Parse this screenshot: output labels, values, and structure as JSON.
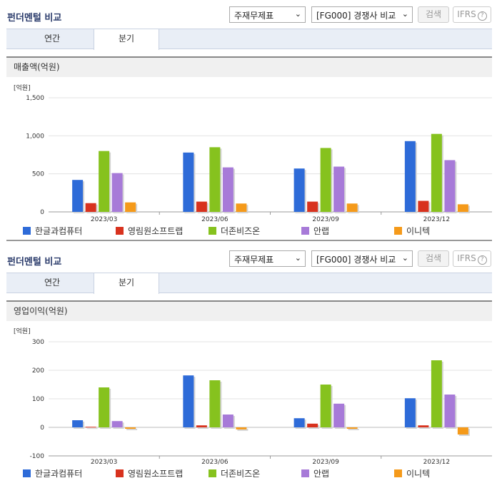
{
  "panels": [
    {
      "title": "펀더멘털 비교",
      "select1": "주재무제표",
      "select2": "[FG000] 경쟁사 비교",
      "search": "검색",
      "ifrs": "IFRS",
      "tabs": [
        "연간",
        "분기"
      ],
      "subtitle": "매출액(억원)",
      "unit": "[억원]",
      "chart_data": {
        "type": "bar",
        "categories": [
          "2023/03",
          "2023/06",
          "2023/09",
          "2023/12"
        ],
        "ylim": [
          0,
          1500
        ],
        "yticks": [
          "1,500",
          "1,000",
          "500",
          "0"
        ],
        "ytickvals": [
          1500,
          1000,
          500,
          0
        ],
        "series": [
          {
            "name": "한글과컴퓨터",
            "color": "#2e6bd8",
            "values": [
              420,
              780,
              570,
              930
            ]
          },
          {
            "name": "영림원소프트랩",
            "color": "#d8321e",
            "values": [
              115,
              135,
              135,
              145
            ]
          },
          {
            "name": "더존비즈온",
            "color": "#86c21e",
            "values": [
              800,
              850,
              840,
              1025
            ]
          },
          {
            "name": "안랩",
            "color": "#a77ad8",
            "values": [
              510,
              585,
              595,
              680
            ]
          },
          {
            "name": "이니텍",
            "color": "#f59a1a",
            "values": [
              125,
              110,
              110,
              100
            ]
          }
        ]
      }
    },
    {
      "title": "펀더멘털 비교",
      "select1": "주재무제표",
      "select2": "[FG000] 경쟁사 비교",
      "search": "검색",
      "ifrs": "IFRS",
      "tabs": [
        "연간",
        "분기"
      ],
      "subtitle": "영업이익(억원)",
      "unit": "[억원]",
      "chart_data": {
        "type": "bar",
        "categories": [
          "2023/03",
          "2023/06",
          "2023/09",
          "2023/12"
        ],
        "ylim": [
          -100,
          300
        ],
        "yticks": [
          "300",
          "200",
          "100",
          "0",
          "-100"
        ],
        "ytickvals": [
          300,
          200,
          100,
          0,
          -100
        ],
        "series": [
          {
            "name": "한글과컴퓨터",
            "color": "#2e6bd8",
            "values": [
              25,
              182,
              32,
              102
            ]
          },
          {
            "name": "영림원소프트랩",
            "color": "#d8321e",
            "values": [
              2,
              7,
              13,
              7
            ]
          },
          {
            "name": "더존비즈온",
            "color": "#86c21e",
            "values": [
              140,
              165,
              150,
              235
            ]
          },
          {
            "name": "안랩",
            "color": "#a77ad8",
            "values": [
              22,
              45,
              83,
              115
            ]
          },
          {
            "name": "이니텍",
            "color": "#f59a1a",
            "values": [
              -5,
              -7,
              -5,
              -25
            ]
          }
        ]
      }
    }
  ]
}
